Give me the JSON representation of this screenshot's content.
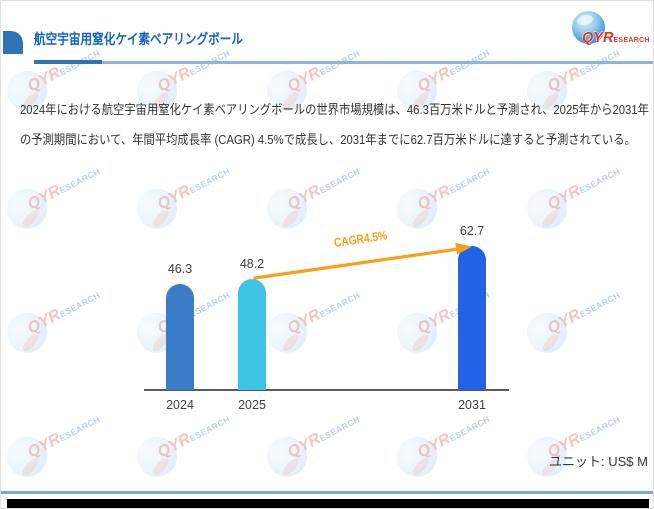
{
  "header": {
    "title": "航空宇宙用窒化ケイ素ベアリングボール",
    "logo": {
      "qyr": "QYR",
      "esearch": "ESEARCH"
    }
  },
  "summary": {
    "lines": [
      "2024年における航空宇宙用窒化ケイ素ベアリングボールの世界市場規模は、46.3百万米ドルと予測され、2025年から2031年",
      "の予測期間において、年間平均成長率 (CAGR) 4.5%で成長し、2031年までに62.7百万米ドルに達すると予測されている。"
    ]
  },
  "chart_data": {
    "type": "bar",
    "categories": [
      "2024",
      "2025",
      "2031"
    ],
    "values": [
      46.3,
      48.2,
      62.7
    ],
    "bar_colors": [
      "#3B7CC9",
      "#3EC4E4",
      "#2263E6"
    ],
    "growth_label": "CAGR4.5%",
    "growth_color": "#F7A01B",
    "unit_label": "ユニット: US$ M",
    "title": "",
    "xlabel": "",
    "ylabel": "",
    "ylim": [
      0,
      70
    ],
    "grid": "off",
    "legend": "none"
  },
  "watermark": {
    "qyr": "QYR",
    "esearch": "ESEARCH"
  }
}
